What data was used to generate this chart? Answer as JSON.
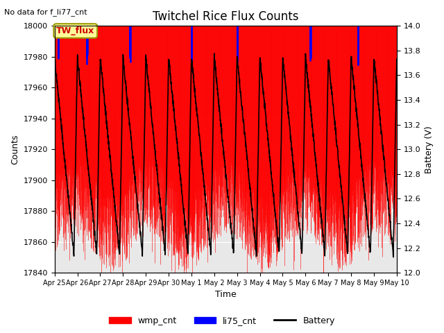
{
  "title": "Twitchel Rice Flux Counts",
  "no_data_text": "No data for f_li77_cnt",
  "xlabel": "Time",
  "ylabel_left": "Counts",
  "ylabel_right": "Battery (V)",
  "ylim_left": [
    17840,
    18000
  ],
  "ylim_right": [
    12.0,
    14.0
  ],
  "yticks_left": [
    17840,
    17860,
    17880,
    17900,
    17920,
    17940,
    17960,
    17980,
    18000
  ],
  "yticks_right": [
    12.0,
    12.2,
    12.4,
    12.6,
    12.8,
    13.0,
    13.2,
    13.4,
    13.6,
    13.8,
    14.0
  ],
  "background_color": "#ffffff",
  "plot_bg_color": "#e8e8e8",
  "grid_color": "#ffffff",
  "annotation_box_text": "TW_flux",
  "annotation_box_color": "#ffff99",
  "annotation_box_edge": "#999900",
  "wmp_color": "#ff0000",
  "li75_color": "#0000ff",
  "battery_color": "#000000",
  "legend_labels": [
    "wmp_cnt",
    "li75_cnt",
    "Battery"
  ],
  "xtick_positions": [
    0,
    1,
    2,
    3,
    4,
    5,
    6,
    7,
    8,
    9,
    10,
    11,
    12,
    13,
    14,
    15
  ],
  "xtick_labels": [
    "Apr 25",
    "Apr 26",
    "Apr 27",
    "Apr 28",
    "Apr 29",
    "Apr 30",
    "May 1",
    "May 2",
    "May 3",
    "May 4",
    "May 5",
    "May 6",
    "May 7",
    "May 8",
    "May 9",
    "May 10"
  ]
}
